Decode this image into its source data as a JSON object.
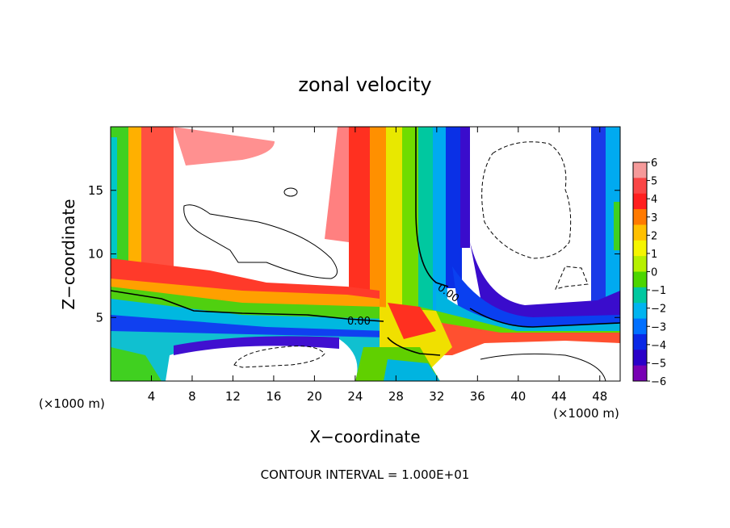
{
  "chart_data": {
    "type": "heatmap",
    "title": "zonal velocity",
    "xlabel": "X−coordinate",
    "ylabel": "Z−coordinate",
    "x_unit_left": "(×1000 m)",
    "x_unit_right": "(×1000 m)",
    "xlim": [
      0,
      50
    ],
    "ylim": [
      0,
      20
    ],
    "x_ticks": [
      4,
      8,
      12,
      16,
      20,
      24,
      28,
      32,
      36,
      40,
      44,
      48
    ],
    "y_ticks": [
      5,
      10,
      15
    ],
    "colorbar": {
      "min": -6,
      "max": 6,
      "ticks": [
        "6",
        "5",
        "4",
        "3",
        "2",
        "1",
        "0",
        "−1",
        "−2",
        "−3",
        "−4",
        "−5",
        "−6"
      ],
      "colors": [
        "#f59a9a",
        "#fa4646",
        "#ff1e1e",
        "#ff7a00",
        "#ffc000",
        "#f5f500",
        "#b6f000",
        "#4cd600",
        "#00c8a0",
        "#00b4f0",
        "#0070ff",
        "#0a28e6",
        "#2a00c8",
        "#7800b4"
      ]
    },
    "contour_labels": [
      "0.00",
      "0.00"
    ],
    "footer": "CONTOUR INTERVAL = 1.000E+01"
  }
}
